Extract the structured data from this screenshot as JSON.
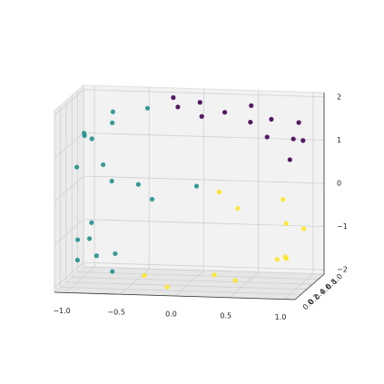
{
  "chart_data": {
    "type": "scatter3d",
    "xlim": [
      -1.1,
      1.1
    ],
    "ylim": [
      0,
      1
    ],
    "zlim": [
      -2.1,
      2.1
    ],
    "xticks": [
      {
        "value": -1,
        "label": "−1.0"
      },
      {
        "value": -0.5,
        "label": "−0.5"
      },
      {
        "value": 0,
        "label": "0.0"
      },
      0.5,
      {
        "value": 1,
        "label": "1.0"
      }
    ],
    "yticks": [
      {
        "value": 0,
        "label": "0.0"
      },
      0.2,
      0.4,
      0.6,
      0.8,
      {
        "value": 1,
        "label": "1.0"
      }
    ],
    "zticks": [
      {
        "value": -2,
        "label": "−2"
      },
      {
        "value": -1,
        "label": "−1"
      },
      0,
      1,
      2
    ],
    "grid": true,
    "series": [
      {
        "color": "#440154",
        "x": [
          1.0,
          0.987,
          0.952,
          0.895,
          0.818,
          0.724,
          0.612,
          0.487,
          0.351,
          0.207,
          0.058,
          -0.091,
          -0.239
        ],
        "y": [
          0.2,
          0.7,
          0.5,
          0.9,
          0.1,
          0.6,
          0.3,
          0.8,
          0.4,
          0.15,
          0.65,
          0.45,
          0.85
        ],
        "z": [
          1.01,
          1.16,
          1.31,
          1.45,
          1.58,
          1.69,
          1.79,
          1.87,
          1.94,
          1.98,
          2.0,
          2.0,
          1.97
        ]
      },
      {
        "color": "#21918c",
        "x": [
          -0.382,
          -0.598,
          -0.778,
          -0.909,
          -0.984,
          -0.997,
          -0.949,
          -0.841,
          -0.682,
          -0.479,
          -0.247,
          0,
          -0.65,
          -0.757,
          -0.848,
          -0.916,
          -0.966,
          -0.994,
          -1.0
        ],
        "y": [
          0.5,
          0.1,
          0.8,
          0.3,
          0.6,
          0.9,
          0.2,
          0.7,
          0.4,
          0.55,
          0.15,
          0.75,
          0.3,
          0.8,
          0.5,
          0.1,
          0.7,
          0.4,
          0.9
        ],
        "z": [
          1.92,
          1.8,
          1.63,
          1.42,
          1.18,
          0.93,
          0.69,
          0.46,
          0.27,
          0.12,
          0.03,
          0,
          -1.76,
          -1.65,
          -1.53,
          -1.4,
          -1.26,
          -1.11,
          -1.01
        ]
      },
      {
        "color": "#fde725",
        "x": [
          0.247,
          0.523,
          0.751,
          0.913,
          0.993,
          0.984,
          0.887,
          0.711,
          0.472,
          0.19,
          -0.108,
          -0.398
        ],
        "y": [
          0.6,
          0.2,
          0.9,
          0.4,
          0.7,
          0.1,
          0.5,
          0.85,
          0.3,
          0.65,
          0.15,
          0.45
        ],
        "z": [
          -0.03,
          -0.15,
          -0.34,
          -0.59,
          -0.88,
          -1.18,
          -1.46,
          -1.7,
          -1.88,
          -1.98,
          -1.99,
          -1.92
        ]
      }
    ]
  }
}
